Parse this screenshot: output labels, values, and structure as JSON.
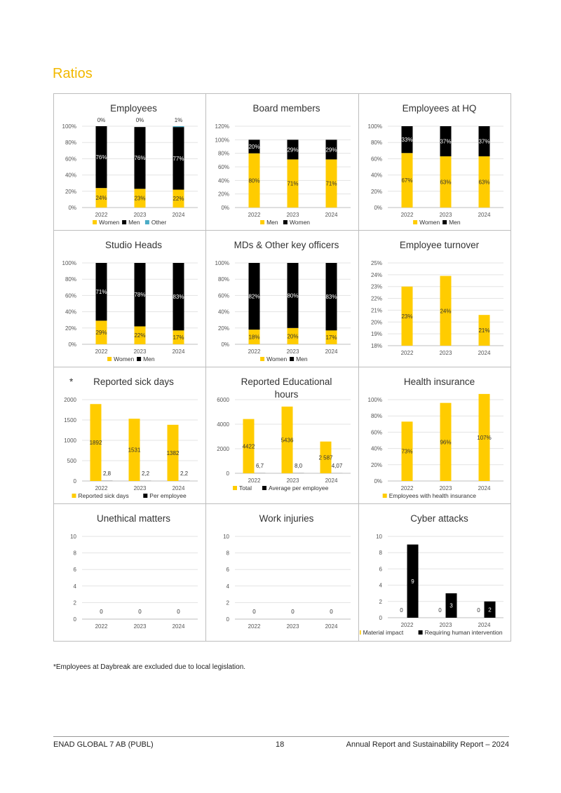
{
  "page": {
    "title": "Ratios",
    "footnote": "*Employees at Daybreak are excluded due to local legislation.",
    "footer": {
      "company": "ENAD GLOBAL 7 AB (PUBL)",
      "page_number": "18",
      "report": "Annual Report and Sustainability Report – 2024"
    }
  },
  "colors": {
    "yellow": "#FFCC00",
    "black": "#000000",
    "teal": "#4BACC6"
  },
  "chart_data": [
    {
      "type": "bar",
      "stacked": true,
      "title": "Employees",
      "star": false,
      "categories": [
        "2022",
        "2023",
        "2024"
      ],
      "ylim": [
        0,
        100
      ],
      "yticks": [
        "0%",
        "20%",
        "40%",
        "60%",
        "80%",
        "100%"
      ],
      "series": [
        {
          "name": "Women",
          "color": "#FFCC00",
          "values": [
            24,
            23,
            22
          ],
          "labels": [
            "24%",
            "23%",
            "22%"
          ]
        },
        {
          "name": "Men",
          "color": "#000000",
          "values": [
            76,
            76,
            77
          ],
          "labels": [
            "76%",
            "76%",
            "77%"
          ]
        },
        {
          "name": "Other",
          "color": "#4BACC6",
          "values": [
            0,
            0,
            1
          ],
          "labels": [
            "0%",
            "0%",
            "1%"
          ],
          "label_above": true
        }
      ]
    },
    {
      "type": "bar",
      "stacked": true,
      "title": "Board members",
      "star": false,
      "categories": [
        "2022",
        "2023",
        "2024"
      ],
      "ylim": [
        0,
        120
      ],
      "yticks": [
        "0%",
        "20%",
        "40%",
        "60%",
        "80%",
        "100%",
        "120%"
      ],
      "series": [
        {
          "name": "Men",
          "color": "#FFCC00",
          "values": [
            80,
            71,
            71
          ],
          "labels": [
            "80%",
            "71%",
            "71%"
          ]
        },
        {
          "name": "Women",
          "color": "#000000",
          "values": [
            20,
            29,
            29
          ],
          "labels": [
            "20%",
            "29%",
            "29%"
          ]
        }
      ]
    },
    {
      "type": "bar",
      "stacked": true,
      "title": "Employees at HQ",
      "star": false,
      "categories": [
        "2022",
        "2023",
        "2024"
      ],
      "ylim": [
        0,
        100
      ],
      "yticks": [
        "0%",
        "20%",
        "40%",
        "60%",
        "80%",
        "100%"
      ],
      "series": [
        {
          "name": "Women",
          "color": "#FFCC00",
          "values": [
            67,
            63,
            63
          ],
          "labels": [
            "67%",
            "63%",
            "63%"
          ]
        },
        {
          "name": "Men",
          "color": "#000000",
          "values": [
            33,
            37,
            37
          ],
          "labels": [
            "33%",
            "37%",
            "37%"
          ]
        }
      ]
    },
    {
      "type": "bar",
      "stacked": true,
      "title": "Studio Heads",
      "star": false,
      "categories": [
        "2022",
        "2023",
        "2024"
      ],
      "ylim": [
        0,
        100
      ],
      "yticks": [
        "0%",
        "20%",
        "40%",
        "60%",
        "80%",
        "100%"
      ],
      "series": [
        {
          "name": "Women",
          "color": "#FFCC00",
          "values": [
            29,
            22,
            17
          ],
          "labels": [
            "29%",
            "22%",
            "17%"
          ]
        },
        {
          "name": "Men",
          "color": "#000000",
          "values": [
            71,
            78,
            83
          ],
          "labels": [
            "71%",
            "78%",
            "83%"
          ]
        }
      ]
    },
    {
      "type": "bar",
      "stacked": true,
      "title": "MDs & Other key officers",
      "star": false,
      "categories": [
        "2022",
        "2023",
        "2024"
      ],
      "ylim": [
        0,
        100
      ],
      "yticks": [
        "0%",
        "20%",
        "40%",
        "60%",
        "80%",
        "100%"
      ],
      "series": [
        {
          "name": "Women",
          "color": "#FFCC00",
          "values": [
            18,
            20,
            17
          ],
          "labels": [
            "18%",
            "20%",
            "17%"
          ]
        },
        {
          "name": "Men",
          "color": "#000000",
          "values": [
            82,
            80,
            83
          ],
          "labels": [
            "82%",
            "80%",
            "83%"
          ]
        }
      ]
    },
    {
      "type": "bar",
      "stacked": false,
      "title": "Employee turnover",
      "star": false,
      "categories": [
        "2022",
        "2023",
        "2024"
      ],
      "ylim": [
        18,
        25
      ],
      "yticks": [
        "18%",
        "19%",
        "20%",
        "21%",
        "22%",
        "23%",
        "24%",
        "25%"
      ],
      "legend": false,
      "series": [
        {
          "name": "",
          "color": "#FFCC00",
          "values": [
            23.0,
            23.9,
            20.6
          ],
          "labels": [
            "23%",
            "24%",
            "21%"
          ]
        }
      ]
    },
    {
      "type": "bar",
      "stacked": false,
      "title": "Reported sick days",
      "star": true,
      "categories": [
        "2022",
        "2023",
        "2024"
      ],
      "ylim": [
        0,
        2000
      ],
      "yticks": [
        "0",
        "500",
        "1000",
        "1500",
        "2000"
      ],
      "series": [
        {
          "name": "Reported sick days",
          "color": "#FFCC00",
          "values": [
            1892,
            1531,
            1382
          ],
          "labels": [
            "1892",
            "1531",
            "1382"
          ]
        },
        {
          "name": "Per employee",
          "color": "#000000",
          "values": [
            2.8,
            2.2,
            2.2
          ],
          "labels": [
            "2,8",
            "2,2",
            "2,2"
          ]
        }
      ]
    },
    {
      "type": "bar",
      "stacked": false,
      "title": "Reported Educational hours",
      "title_lines": [
        "Reported Educational",
        "hours"
      ],
      "star": false,
      "categories": [
        "2022",
        "2023",
        "2024"
      ],
      "ylim": [
        0,
        6000
      ],
      "yticks": [
        "0",
        "2000",
        "4000",
        "6000"
      ],
      "series": [
        {
          "name": "Total",
          "color": "#FFCC00",
          "values": [
            4422,
            5436,
            2587
          ],
          "labels": [
            "4422",
            "5436",
            "2 587"
          ]
        },
        {
          "name": "Average per employee",
          "color": "#000000",
          "values": [
            6.7,
            8.0,
            4.07
          ],
          "labels": [
            "6,7",
            "8,0",
            "4,07"
          ]
        }
      ]
    },
    {
      "type": "bar",
      "stacked": false,
      "title": "Health insurance",
      "star": false,
      "categories": [
        "2022",
        "2023",
        "2024"
      ],
      "ylim": [
        0,
        100
      ],
      "yticks": [
        "0%",
        "20%",
        "40%",
        "60%",
        "80%",
        "100%"
      ],
      "series": [
        {
          "name": "Employees with health insurance",
          "color": "#FFCC00",
          "values": [
            73,
            96,
            107
          ],
          "labels": [
            "73%",
            "96%",
            "107%"
          ]
        }
      ]
    },
    {
      "type": "bar",
      "stacked": false,
      "title": "Unethical matters",
      "star": false,
      "categories": [
        "2022",
        "2023",
        "2024"
      ],
      "ylim": [
        0,
        10
      ],
      "yticks": [
        "0",
        "2",
        "4",
        "6",
        "8",
        "10"
      ],
      "legend": false,
      "series": [
        {
          "name": "",
          "color": "#FFCC00",
          "values": [
            0,
            0,
            0
          ],
          "labels": [
            "0",
            "0",
            "0"
          ]
        }
      ]
    },
    {
      "type": "bar",
      "stacked": false,
      "title": "Work injuries",
      "star": false,
      "categories": [
        "2022",
        "2023",
        "2024"
      ],
      "ylim": [
        0,
        10
      ],
      "yticks": [
        "0",
        "2",
        "4",
        "6",
        "8",
        "10"
      ],
      "legend": false,
      "series": [
        {
          "name": "",
          "color": "#FFCC00",
          "values": [
            0,
            0,
            0
          ],
          "labels": [
            "0",
            "0",
            "0"
          ]
        }
      ]
    },
    {
      "type": "bar",
      "stacked": false,
      "title": "Cyber attacks",
      "star": false,
      "categories": [
        "2022",
        "2023",
        "2024"
      ],
      "ylim": [
        0,
        10
      ],
      "yticks": [
        "0",
        "2",
        "4",
        "6",
        "8",
        "10"
      ],
      "series": [
        {
          "name": "Material impact",
          "color": "#FFCC00",
          "values": [
            0,
            0,
            0
          ],
          "labels": [
            "0",
            "0",
            "0"
          ]
        },
        {
          "name": "Requiring human intervention",
          "color": "#000000",
          "values": [
            9,
            3,
            2
          ],
          "labels": [
            "9",
            "3",
            "2"
          ]
        }
      ]
    }
  ]
}
